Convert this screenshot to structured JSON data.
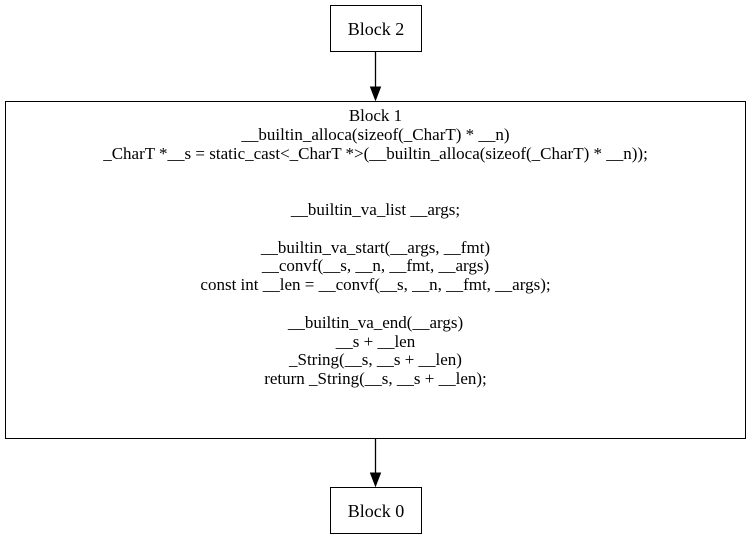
{
  "nodes": {
    "block_2": {
      "label": "Block 2"
    },
    "block_1": {
      "lines": [
        "Block 1",
        "__builtin_alloca(sizeof(_CharT) * __n)",
        "_CharT *__s = static_cast<_CharT *>(__builtin_alloca(sizeof(_CharT) * __n));",
        "",
        "",
        "__builtin_va_list __args;",
        "",
        "__builtin_va_start(__args, __fmt)",
        "__convf(__s, __n, __fmt, __args)",
        "const int __len = __convf(__s, __n, __fmt, __args);",
        "",
        "__builtin_va_end(__args)",
        "__s + __len",
        "_String(__s, __s + __len)",
        "return _String(__s, __s + __len);"
      ]
    },
    "block_0": {
      "label": "Block 0"
    }
  },
  "edges": [
    {
      "from": "Block 2",
      "to": "Block 1"
    },
    {
      "from": "Block 1",
      "to": "Block 0"
    }
  ]
}
